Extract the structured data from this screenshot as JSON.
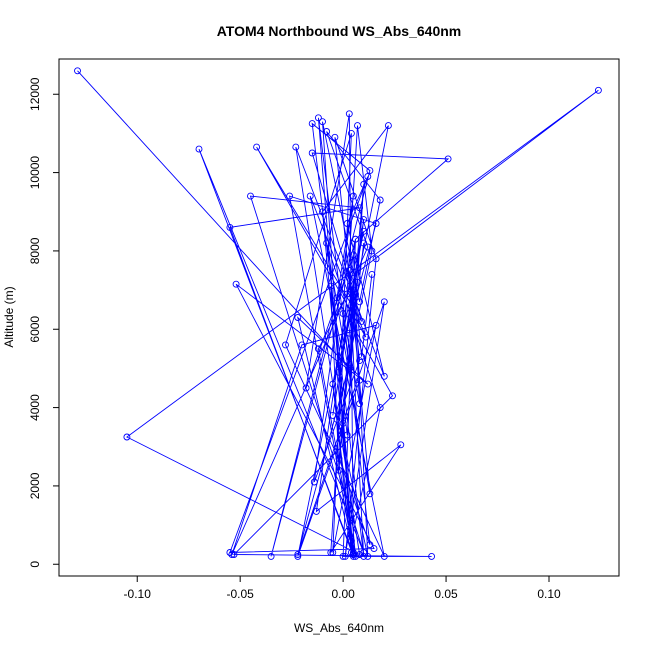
{
  "chart_data": {
    "type": "line",
    "title": "ATOM4 Northbound WS_Abs_640nm",
    "xlabel": "WS_Abs_640nm",
    "ylabel": "Altitude (m)",
    "xlim": [
      -0.138,
      0.134
    ],
    "ylim": [
      -300,
      12900
    ],
    "x_ticks": [
      -0.1,
      -0.05,
      0.0,
      0.05,
      0.1
    ],
    "x_tick_labels": [
      "-0.10",
      "-0.05",
      "0.00",
      "0.05",
      "0.10"
    ],
    "y_ticks": [
      0,
      2000,
      4000,
      6000,
      8000,
      10000,
      12000
    ],
    "y_tick_labels": [
      "0",
      "2000",
      "4000",
      "6000",
      "8000",
      "10000",
      "12000"
    ],
    "grid": false,
    "colors": {
      "series": "#0000ff",
      "frame": "#000000"
    },
    "marker": "open-circle",
    "series": [
      {
        "x": [
          -0.129,
          0.003,
          -0.012,
          0.005,
          -0.055,
          0.008,
          -0.045,
          0.01,
          -0.07,
          0.005,
          -0.022,
          0.012,
          -0.052,
          0.015,
          -0.055,
          0.012,
          0.002,
          0.02,
          -0.023,
          0.008,
          -0.105,
          0.124,
          0.003,
          0.01,
          -0.015,
          0.013,
          -0.035,
          0.006,
          0.051,
          -0.015,
          0.009,
          -0.042,
          0.011,
          -0.016,
          0.02,
          -0.028,
          0.004,
          -0.005,
          0.016,
          -0.02,
          -0.054,
          0.012,
          -0.008,
          0.018,
          0.008,
          -0.01,
          0.004,
          -0.005,
          0.016,
          -0.026,
          0.005,
          0.003,
          -0.018,
          0.005,
          0.012,
          -0.001,
          0.01,
          0.003,
          -0.022,
          0.02,
          0.001,
          0.016,
          -0.004,
          0.008,
          -0.022,
          0.01,
          0.002,
          -0.012,
          0.006,
          -0.002,
          0.022,
          -0.01,
          0.005,
          -0.003,
          0.014,
          0.007,
          -0.006,
          0.028,
          -0.013,
          0.006,
          0.0,
          0.043,
          -0.053,
          0.024,
          -0.003,
          0.005,
          -0.014,
          0.008,
          0.003,
          0.013,
          -0.008,
          0.018,
          0.004,
          0.0,
          0.01,
          0.007,
          -0.002,
          0.013,
          0.0,
          0.008,
          0.005,
          -0.005,
          0.01,
          0.003,
          -0.002,
          -0.006,
          0.002,
          0.006,
          0.009,
          0.014
        ],
        "y": [
          12600,
          5000,
          11400,
          200,
          8600,
          9100,
          9400,
          300,
          10600,
          250,
          6300,
          4600,
          7150,
          400,
          300,
          9900,
          8700,
          4800,
          10650,
          250,
          3250,
          12100,
          7300,
          200,
          11250,
          10050,
          200,
          8300,
          10350,
          10500,
          6200,
          10650,
          5800,
          9400,
          200,
          5600,
          11000,
          300,
          6100,
          5600,
          250,
          8100,
          11050,
          9300,
          6700,
          11300,
          300,
          4600,
          8700,
          9400,
          250,
          11500,
          4500,
          7900,
          200,
          3400,
          8200,
          5100,
          250,
          6700,
          200,
          7800,
          10900,
          4700,
          200,
          8500,
          6900,
          5500,
          200,
          4900,
          11200,
          9000,
          300,
          3700,
          8000,
          11200,
          300,
          3050,
          1350,
          8300,
          200,
          200,
          250,
          4300,
          6800,
          9400,
          2100,
          5200,
          7500,
          1800,
          8200,
          4000,
          600,
          3600,
          9700,
          7200,
          2700,
          500,
          6400,
          4100,
          7000,
          3800,
          8800,
          5900,
          2400,
          7100,
          3300,
          6900,
          5300,
          7400
        ]
      }
    ]
  }
}
